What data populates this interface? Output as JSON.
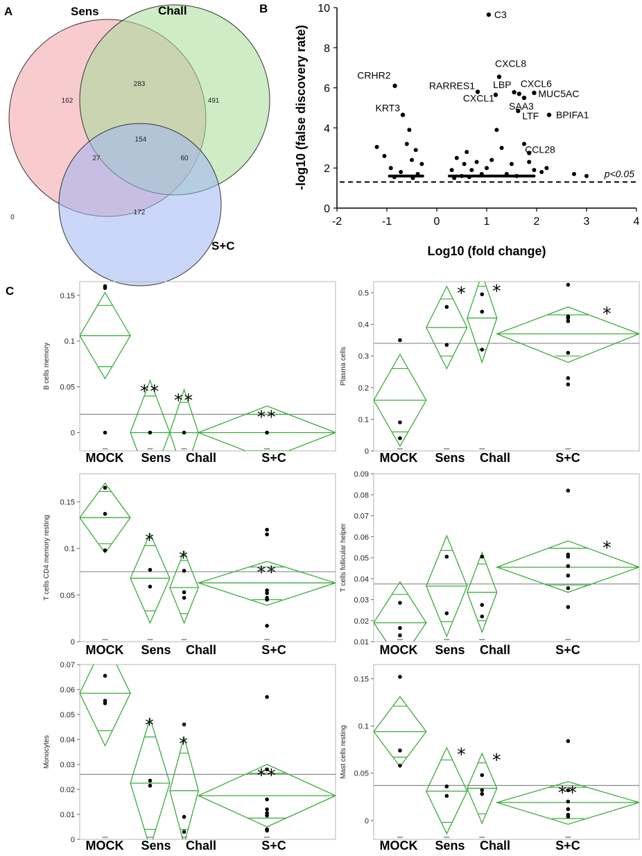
{
  "panel_labels": {
    "a": "A",
    "b": "B",
    "c": "C"
  },
  "venn": {
    "type": "venn",
    "sets": [
      {
        "name": "Sens",
        "color": "#f3a0a8"
      },
      {
        "name": "Chall",
        "color": "#a6dc98"
      },
      {
        "name": "S+C",
        "color": "#9fb7f4"
      }
    ],
    "regions": [
      {
        "sets": "Sens only",
        "value": "162"
      },
      {
        "sets": "Sens∩Chall",
        "value": "283"
      },
      {
        "sets": "Chall only",
        "value": "491"
      },
      {
        "sets": "Sens∩S+C",
        "value": "27"
      },
      {
        "sets": "all",
        "value": "154"
      },
      {
        "sets": "Chall∩S+C",
        "value": "60"
      },
      {
        "sets": "S+C only",
        "value": "172"
      },
      {
        "sets": "none",
        "value": "0"
      }
    ]
  },
  "volcano": {
    "type": "scatter",
    "xlabel": "Log10 (fold change)",
    "ylabel": "-log10 (false discovery rate)",
    "xlim": [
      -2,
      4
    ],
    "ylim": [
      0,
      10
    ],
    "xticks": [
      "-2",
      "-1",
      "0",
      "1",
      "2",
      "3",
      "4"
    ],
    "yticks": [
      "0",
      "2",
      "4",
      "6",
      "8",
      "10"
    ],
    "threshold": {
      "y": 1.3,
      "label": "p<0.05"
    },
    "labeled_points": [
      {
        "name": "C3",
        "x": 1.04,
        "y": 9.65
      },
      {
        "name": "CRHR2",
        "x": -0.84,
        "y": 6.1
      },
      {
        "name": "KRT3",
        "x": -0.68,
        "y": 4.65
      },
      {
        "name": "RARRES1",
        "x": 0.82,
        "y": 5.8
      },
      {
        "name": "CXCL8",
        "x": 1.25,
        "y": 6.55
      },
      {
        "name": "LBP",
        "x": 1.55,
        "y": 5.78
      },
      {
        "name": "CXCL6",
        "x": 1.65,
        "y": 5.7
      },
      {
        "name": "MUC5AC",
        "x": 1.95,
        "y": 5.75
      },
      {
        "name": "CXCL1",
        "x": 1.18,
        "y": 5.65
      },
      {
        "name": "SAA3",
        "x": 1.75,
        "y": 5.5
      },
      {
        "name": "LTF",
        "x": 1.63,
        "y": 4.85
      },
      {
        "name": "BPIFA1",
        "x": 2.25,
        "y": 4.65
      },
      {
        "name": "CCL28",
        "x": 1.85,
        "y": 2.75
      }
    ],
    "cluster_points": [
      [
        -1.2,
        3.05
      ],
      [
        -1.05,
        2.6
      ],
      [
        -0.92,
        2.0
      ],
      [
        -0.85,
        1.55
      ],
      [
        -0.72,
        1.8
      ],
      [
        -0.6,
        3.2
      ],
      [
        -0.55,
        3.9
      ],
      [
        -0.5,
        2.4
      ],
      [
        -0.42,
        2.9
      ],
      [
        -0.38,
        1.7
      ],
      [
        -0.3,
        2.2
      ],
      [
        -0.48,
        1.5
      ],
      [
        0.3,
        1.9
      ],
      [
        0.4,
        2.5
      ],
      [
        0.5,
        1.6
      ],
      [
        0.6,
        2.8
      ],
      [
        0.7,
        1.9
      ],
      [
        0.8,
        2.3
      ],
      [
        0.9,
        1.7
      ],
      [
        1.0,
        2.0
      ],
      [
        1.2,
        3.9
      ],
      [
        1.3,
        3.0
      ],
      [
        1.1,
        2.4
      ],
      [
        0.55,
        2.2
      ],
      [
        1.4,
        1.7
      ],
      [
        1.5,
        2.2
      ],
      [
        1.6,
        1.6
      ],
      [
        1.75,
        3.2
      ],
      [
        1.85,
        2.3
      ],
      [
        1.95,
        1.9
      ],
      [
        2.1,
        1.8
      ],
      [
        2.2,
        2.0
      ],
      [
        2.75,
        1.7
      ],
      [
        3.0,
        1.6
      ],
      [
        0.35,
        1.5
      ],
      [
        0.65,
        1.55
      ]
    ]
  },
  "chart_data": [
    {
      "type": "scatter",
      "variant": "diamond",
      "ylabel": "B cells memory",
      "categories": [
        "MOCK",
        "Sens",
        "Chall",
        "S+C"
      ],
      "ylim": [
        -0.02,
        0.165
      ],
      "yticks": [
        "0",
        "0.05",
        "0.1",
        "0.15"
      ],
      "grand_mean": 0.02,
      "groups": [
        {
          "mean": 0.106,
          "ci": [
            0.059,
            0.153
          ],
          "overlap": [
            0.072,
            0.139
          ],
          "points": [
            0.16,
            0.158,
            0.0
          ],
          "star": ""
        },
        {
          "mean": 0.0,
          "ci": [
            -0.057,
            0.057
          ],
          "overlap": [
            -0.04,
            0.04
          ],
          "points": [
            0.0
          ],
          "star": "**"
        },
        {
          "mean": 0.0,
          "ci": [
            -0.047,
            0.047
          ],
          "overlap": [
            -0.033,
            0.033
          ],
          "points": [
            0.0
          ],
          "star": "**"
        },
        {
          "mean": 0.0,
          "ci": [
            -0.029,
            0.029
          ],
          "overlap": [
            -0.02,
            0.02
          ],
          "points": [
            0.0
          ],
          "star": "**"
        }
      ]
    },
    {
      "type": "scatter",
      "variant": "diamond",
      "ylabel": "Plasma cells",
      "categories": [
        "MOCK",
        "Sens",
        "Chall",
        "S+C"
      ],
      "ylim": [
        0,
        0.535
      ],
      "yticks": [
        "0",
        "0.1",
        "0.2",
        "0.3",
        "0.4",
        "0.5"
      ],
      "grand_mean": 0.34,
      "groups": [
        {
          "mean": 0.16,
          "ci": [
            0.015,
            0.305
          ],
          "overlap": [
            0.06,
            0.26
          ],
          "points": [
            0.35,
            0.09,
            0.04
          ],
          "star": ""
        },
        {
          "mean": 0.39,
          "ci": [
            0.26,
            0.52
          ],
          "overlap": [
            0.3,
            0.48
          ],
          "points": [
            0.455,
            0.335
          ],
          "star": "*"
        },
        {
          "mean": 0.42,
          "ci": [
            0.28,
            0.56
          ],
          "overlap": [
            0.32,
            0.52
          ],
          "points": [
            0.495,
            0.44,
            0.32
          ],
          "star": "*"
        },
        {
          "mean": 0.37,
          "ci": [
            0.28,
            0.455
          ],
          "overlap": [
            0.3,
            0.43
          ],
          "points": [
            0.525,
            0.425,
            0.42,
            0.41,
            0.31,
            0.23,
            0.21
          ],
          "star": "*"
        }
      ]
    },
    {
      "type": "scatter",
      "variant": "diamond",
      "ylabel": "T cells CD4 memory resting",
      "categories": [
        "MOCK",
        "Sens",
        "Chall",
        "S+C"
      ],
      "ylim": [
        0,
        0.18
      ],
      "yticks": [
        "0",
        "0.05",
        "0.1",
        "0.15"
      ],
      "grand_mean": 0.075,
      "groups": [
        {
          "mean": 0.133,
          "ci": [
            0.095,
            0.17
          ],
          "overlap": [
            0.105,
            0.161
          ],
          "points": [
            0.165,
            0.137,
            0.098
          ],
          "star": ""
        },
        {
          "mean": 0.068,
          "ci": [
            0.02,
            0.116
          ],
          "overlap": [
            0.033,
            0.103
          ],
          "points": [
            0.077,
            0.059
          ],
          "star": "*"
        },
        {
          "mean": 0.058,
          "ci": [
            0.02,
            0.097
          ],
          "overlap": [
            0.03,
            0.087
          ],
          "points": [
            0.076,
            0.053,
            0.047
          ],
          "star": "*"
        },
        {
          "mean": 0.063,
          "ci": [
            0.039,
            0.086
          ],
          "overlap": [
            0.045,
            0.08
          ],
          "points": [
            0.12,
            0.115,
            0.055,
            0.052,
            0.047,
            0.045,
            0.017
          ],
          "star": "**"
        }
      ]
    },
    {
      "type": "scatter",
      "variant": "diamond",
      "ylabel": "T cells follicular helper",
      "categories": [
        "MOCK",
        "Sens",
        "Chall",
        "S+C"
      ],
      "ylim": [
        0.01,
        0.09
      ],
      "yticks": [
        "0.01",
        "0.02",
        "0.03",
        "0.04",
        "0.05",
        "0.06",
        "0.07",
        "0.08",
        "0.09"
      ],
      "grand_mean": 0.0375,
      "groups": [
        {
          "mean": 0.019,
          "ci": [
            0.0005,
            0.0385
          ],
          "overlap": [
            0.0055,
            0.0325
          ],
          "points": [
            0.0285,
            0.0165,
            0.013
          ],
          "star": ""
        },
        {
          "mean": 0.0365,
          "ci": [
            0.0125,
            0.0605
          ],
          "overlap": [
            0.0195,
            0.0535
          ],
          "points": [
            0.0505,
            0.0235
          ],
          "star": ""
        },
        {
          "mean": 0.0335,
          "ci": [
            0.0145,
            0.0525
          ],
          "overlap": [
            0.02,
            0.047
          ],
          "points": [
            0.0505,
            0.0275,
            0.022
          ],
          "star": ""
        },
        {
          "mean": 0.0455,
          "ci": [
            0.0335,
            0.058
          ],
          "overlap": [
            0.037,
            0.0545
          ],
          "points": [
            0.082,
            0.0515,
            0.0505,
            0.046,
            0.0415,
            0.0355,
            0.0265
          ],
          "star": "*"
        }
      ]
    },
    {
      "type": "scatter",
      "variant": "diamond",
      "ylabel": "Monocytes",
      "categories": [
        "MOCK",
        "Sens",
        "Chall",
        "S+C"
      ],
      "ylim": [
        0,
        0.07
      ],
      "yticks": [
        "0",
        "0.01",
        "0.02",
        "0.03",
        "0.04",
        "0.05",
        "0.06",
        "0.07"
      ],
      "grand_mean": 0.026,
      "groups": [
        {
          "mean": 0.0585,
          "ci": [
            0.0375,
            0.0795
          ],
          "overlap": [
            0.0435,
            0.0735
          ],
          "points": [
            0.0655,
            0.0555,
            0.0545
          ],
          "star": ""
        },
        {
          "mean": 0.0225,
          "ci": [
            -0.0035,
            0.0485
          ],
          "overlap": [
            0.004,
            0.041
          ],
          "points": [
            0.0235,
            0.0215
          ],
          "star": "*"
        },
        {
          "mean": 0.0195,
          "ci": [
            -0.002,
            0.041
          ],
          "overlap": [
            0.004,
            0.0345
          ],
          "points": [
            0.046,
            0.009,
            0.003
          ],
          "star": "*"
        },
        {
          "mean": 0.0175,
          "ci": [
            0.005,
            0.03
          ],
          "overlap": [
            0.0085,
            0.0265
          ],
          "points": [
            0.057,
            0.028,
            0.016,
            0.012,
            0.0105,
            0.0095,
            0.004,
            0.0035
          ],
          "star": "**"
        }
      ]
    },
    {
      "type": "scatter",
      "variant": "diamond",
      "ylabel": "Mast cells resting",
      "categories": [
        "MOCK",
        "Sens",
        "Chall",
        "S+C"
      ],
      "ylim": [
        -0.02,
        0.165
      ],
      "yticks": [
        "0",
        "0.05",
        "0.1",
        "0.15"
      ],
      "grand_mean": 0.037,
      "groups": [
        {
          "mean": 0.094,
          "ci": [
            0.057,
            0.131
          ],
          "overlap": [
            0.067,
            0.121
          ],
          "points": [
            0.152,
            0.074,
            0.058
          ],
          "star": ""
        },
        {
          "mean": 0.031,
          "ci": [
            -0.014,
            0.077
          ],
          "overlap": [
            -0.002,
            0.064
          ],
          "points": [
            0.036,
            0.026
          ],
          "star": "*"
        },
        {
          "mean": 0.034,
          "ci": [
            -0.003,
            0.071
          ],
          "overlap": [
            0.007,
            0.061
          ],
          "points": [
            0.048,
            0.032,
            0.028
          ],
          "star": "*"
        },
        {
          "mean": 0.019,
          "ci": [
            -0.004,
            0.041
          ],
          "overlap": [
            0.002,
            0.035
          ],
          "points": [
            0.084,
            0.032,
            0.02,
            0.012,
            0.006,
            0.004
          ],
          "star": "**"
        }
      ]
    }
  ]
}
